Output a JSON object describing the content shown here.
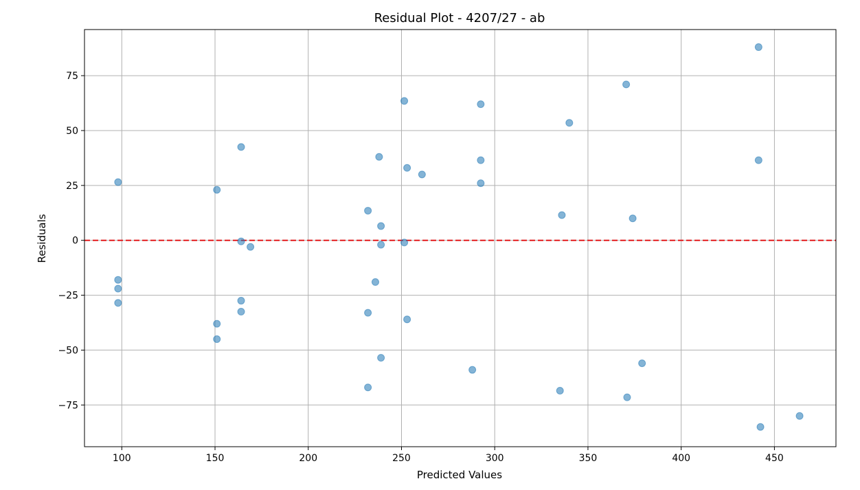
{
  "chart_data": {
    "type": "scatter",
    "title": "Residual Plot - 4207/27 - ab",
    "xlabel": "Predicted Values",
    "ylabel": "Residuals",
    "xlim": [
      80,
      483
    ],
    "ylim": [
      -94,
      96
    ],
    "xticks": [
      100,
      150,
      200,
      250,
      300,
      350,
      400,
      450
    ],
    "yticks": [
      -75,
      -50,
      -25,
      0,
      25,
      50,
      75
    ],
    "xtick_labels": [
      "100",
      "150",
      "200",
      "250",
      "300",
      "350",
      "400",
      "450"
    ],
    "ytick_labels": [
      "−75",
      "−50",
      "−25",
      "0",
      "25",
      "50",
      "75"
    ],
    "grid": true,
    "reference_line": {
      "y": 0,
      "color": "#e31a1c",
      "style": "dashed"
    },
    "point_color": "#1f77b4",
    "points": [
      {
        "x": 98,
        "y": 26.5
      },
      {
        "x": 98,
        "y": -18
      },
      {
        "x": 98,
        "y": -22
      },
      {
        "x": 98,
        "y": -28.5
      },
      {
        "x": 151,
        "y": 23
      },
      {
        "x": 151,
        "y": -38
      },
      {
        "x": 151,
        "y": -45
      },
      {
        "x": 164,
        "y": 42.5
      },
      {
        "x": 164,
        "y": -0.5
      },
      {
        "x": 164,
        "y": -27.5
      },
      {
        "x": 164,
        "y": -32.5
      },
      {
        "x": 169,
        "y": -3
      },
      {
        "x": 232,
        "y": 13.5
      },
      {
        "x": 232,
        "y": -33
      },
      {
        "x": 232,
        "y": -67
      },
      {
        "x": 236,
        "y": -19
      },
      {
        "x": 238,
        "y": 38
      },
      {
        "x": 239,
        "y": 6.5
      },
      {
        "x": 239,
        "y": -2
      },
      {
        "x": 239,
        "y": -53.5
      },
      {
        "x": 251.5,
        "y": 63.5
      },
      {
        "x": 251.5,
        "y": -1
      },
      {
        "x": 253,
        "y": 33
      },
      {
        "x": 253,
        "y": -36
      },
      {
        "x": 261,
        "y": 30
      },
      {
        "x": 288,
        "y": -59
      },
      {
        "x": 292.5,
        "y": 62
      },
      {
        "x": 292.5,
        "y": 36.5
      },
      {
        "x": 292.5,
        "y": 26
      },
      {
        "x": 335,
        "y": -68.5
      },
      {
        "x": 336,
        "y": 11.5
      },
      {
        "x": 340,
        "y": 53.5
      },
      {
        "x": 370.5,
        "y": 71
      },
      {
        "x": 371,
        "y": -71.5
      },
      {
        "x": 374,
        "y": 10
      },
      {
        "x": 379,
        "y": -56
      },
      {
        "x": 441.5,
        "y": 88
      },
      {
        "x": 441.5,
        "y": 36.5
      },
      {
        "x": 442.5,
        "y": -85
      },
      {
        "x": 463.5,
        "y": -80
      }
    ]
  }
}
